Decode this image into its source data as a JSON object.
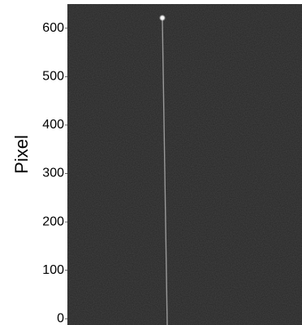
{
  "chart_data": {
    "type": "image",
    "ylabel": "Pixel",
    "ylim": [
      -13,
      650
    ],
    "yticks": [
      0,
      100,
      200,
      300,
      400,
      500,
      600
    ]
  }
}
